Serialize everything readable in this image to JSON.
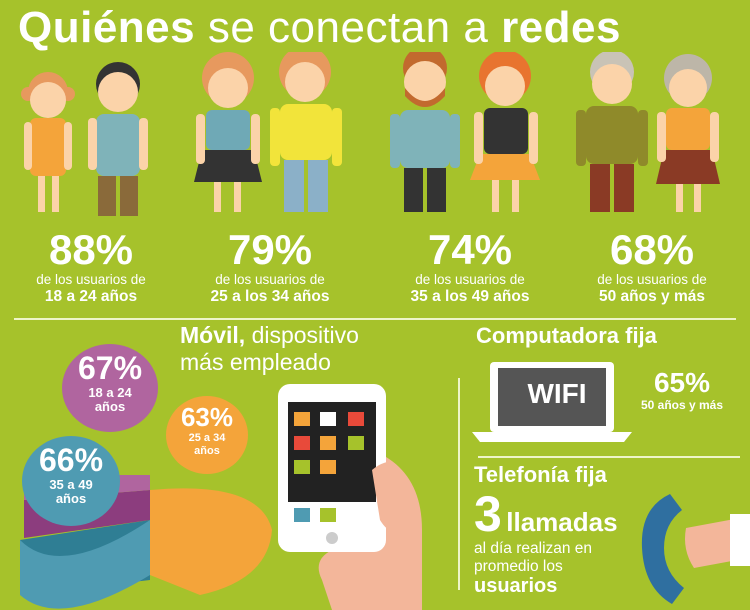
{
  "header": {
    "title_bold_1": "Quiénes",
    "title_normal": "se conectan a",
    "title_bold_2": "redes"
  },
  "stats": [
    {
      "pct": "88%",
      "label": "de los usuarios de",
      "age": "18 a 24 años"
    },
    {
      "pct": "79%",
      "label": "de los usuarios de",
      "age": "25 a los 34 años"
    },
    {
      "pct": "74%",
      "label": "de los usuarios de",
      "age": "35 a los 49 años"
    },
    {
      "pct": "68%",
      "label": "de los usuarios de",
      "age": "50 años y más"
    }
  ],
  "movil": {
    "title_bold": "Móvil,",
    "title_rest": "dispositivo",
    "title_line2": "más empleado"
  },
  "bubbles": [
    {
      "pct": "67%",
      "line1": "18 a 24",
      "line2": "años"
    },
    {
      "pct": "63%",
      "line1": "25 a 34",
      "line2": "años"
    },
    {
      "pct": "66%",
      "line1": "35 a 49",
      "line2": "años"
    }
  ],
  "computadora": {
    "title": "Computadora fija",
    "screen_text": "WIFI",
    "pct": "65%",
    "label": "50 años y más"
  },
  "telefonia": {
    "title": "Telefonía fija",
    "number": "3",
    "word": "llamadas",
    "line2": "al día realizan en",
    "line3": "promedio los",
    "line4": "usuarios"
  },
  "colors": {
    "background": "#a6c22b",
    "orange": "#f4a43a",
    "purple": "#b0659f",
    "blue": "#4f9bb2",
    "teal": "#2f7e94"
  }
}
